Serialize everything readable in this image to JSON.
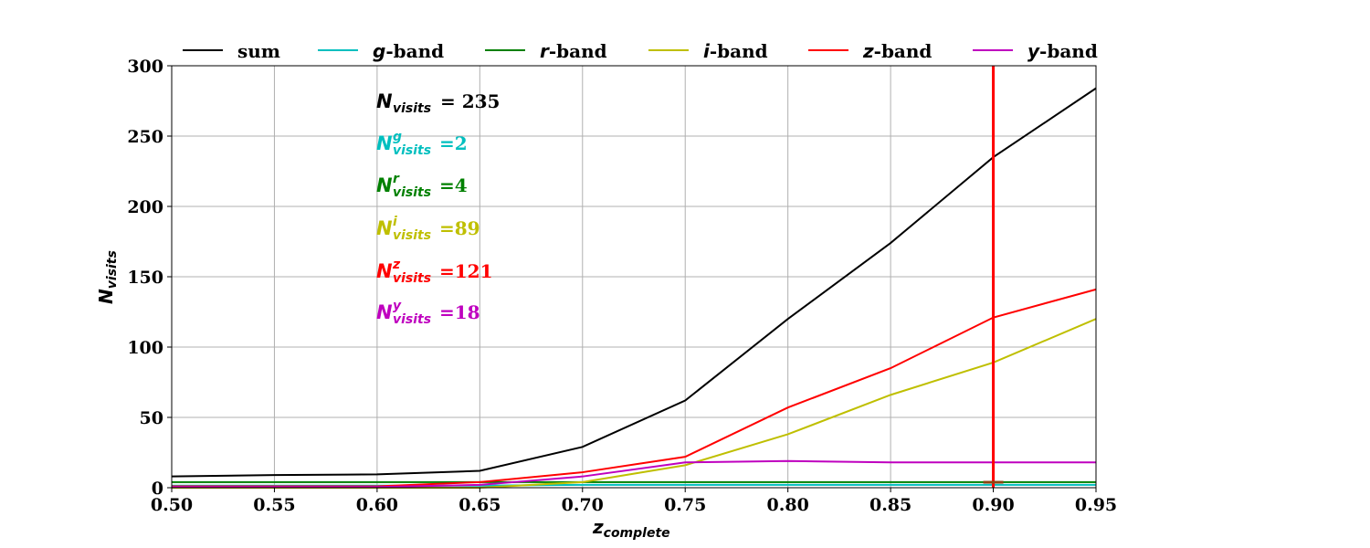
{
  "chart_data": {
    "type": "line",
    "x": [
      0.5,
      0.55,
      0.6,
      0.65,
      0.7,
      0.75,
      0.8,
      0.85,
      0.9,
      0.95
    ],
    "xlim": [
      0.5,
      0.95
    ],
    "ylim": [
      0,
      300
    ],
    "xticks": [
      "0.50",
      "0.55",
      "0.60",
      "0.65",
      "0.70",
      "0.75",
      "0.80",
      "0.85",
      "0.90",
      "0.95"
    ],
    "yticks": [
      "0",
      "50",
      "100",
      "150",
      "200",
      "250",
      "300"
    ],
    "xlabel": {
      "base": "z",
      "sub": "complete"
    },
    "ylabel": {
      "base": "N",
      "sub": "visits"
    },
    "grid": true,
    "legend_position": "top",
    "vline": {
      "x": 0.9,
      "color": "#ff0000"
    },
    "series": [
      {
        "name": "sum",
        "prefix": "",
        "suffix": "sum",
        "color": "#000000",
        "values": [
          8,
          9,
          9.5,
          12,
          29,
          62,
          120,
          174,
          235,
          284
        ]
      },
      {
        "name": "g-band",
        "prefix": "g",
        "suffix": "-band",
        "color": "#00bfbf",
        "values": [
          1.5,
          1.5,
          1.5,
          1.5,
          2,
          2,
          2,
          2,
          2,
          2
        ]
      },
      {
        "name": "r-band",
        "prefix": "r",
        "suffix": "-band",
        "color": "#008000",
        "values": [
          4,
          4,
          4,
          4,
          4,
          4,
          4,
          4,
          4,
          4
        ]
      },
      {
        "name": "i-band",
        "prefix": "i",
        "suffix": "-band",
        "color": "#bfbf00",
        "values": [
          0,
          0,
          0,
          0,
          4,
          16,
          38,
          66,
          89,
          120
        ]
      },
      {
        "name": "z-band",
        "prefix": "z",
        "suffix": "-band",
        "color": "#ff0000",
        "values": [
          1,
          1,
          1,
          4,
          11,
          22,
          57,
          85,
          121,
          141
        ]
      },
      {
        "name": "y-band",
        "prefix": "y",
        "suffix": "-band",
        "color": "#bf00bf",
        "values": [
          0.5,
          0.5,
          0.5,
          2,
          8,
          18,
          19,
          18,
          18,
          18
        ]
      }
    ],
    "annotations": [
      {
        "sup": "",
        "value": "= 235",
        "color": "#000000"
      },
      {
        "sup": "g",
        "value": "=2",
        "color": "#00bfbf"
      },
      {
        "sup": "r",
        "value": "=4",
        "color": "#008000"
      },
      {
        "sup": "i",
        "value": "=89",
        "color": "#bfbf00"
      },
      {
        "sup": "z",
        "value": "=121",
        "color": "#ff0000"
      },
      {
        "sup": "y",
        "value": "=18",
        "color": "#bf00bf"
      }
    ]
  }
}
